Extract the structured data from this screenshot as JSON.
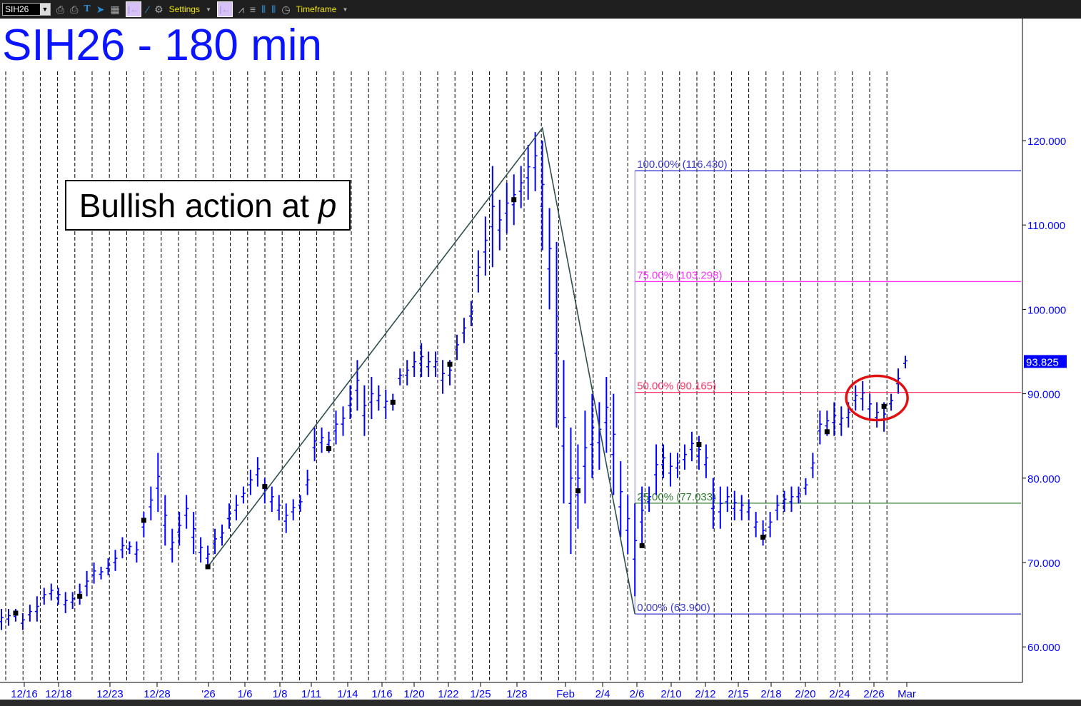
{
  "toolbar": {
    "symbol": "SIH26",
    "settings_label": "Settings",
    "timeframe_label": "Timeframe"
  },
  "title": "SIH26 - 180 min",
  "annotation": "Bullish action at ",
  "annotation_italic": "p",
  "colors": {
    "bars": "#0000ff",
    "trendline": "#2f4f4f",
    "fib100": "#3a3ad0",
    "fib75": "#ff33ff",
    "fib50": "#ff3366",
    "fib25": "#2e7d2e",
    "fib0": "#3a3ad0",
    "circle": "#e01010",
    "last_price_bg": "#0000ff"
  },
  "chart_data": {
    "type": "ohlc",
    "title": "SIH26 - 180 min",
    "ylim": [
      55,
      130
    ],
    "y_ticks": [
      "120.000",
      "110.000",
      "100.000",
      "90.000",
      "80.000",
      "70.000",
      "60.000"
    ],
    "y_tick_values": [
      120,
      110,
      100,
      90,
      80,
      70,
      60
    ],
    "x_ticks": [
      "12/16",
      "12/18",
      "12/23",
      "12/28",
      "'26",
      "1/6",
      "1/8",
      "1/11",
      "1/14",
      "1/16",
      "1/20",
      "1/22",
      "1/25",
      "1/28",
      "Feb",
      "2/4",
      "2/6",
      "2/10",
      "2/12",
      "2/15",
      "2/18",
      "2/20",
      "2/24",
      "2/26",
      "Mar"
    ],
    "last_price": "93.825",
    "bars_low_high": [
      [
        62,
        64.5
      ],
      [
        62.5,
        64.5
      ],
      [
        63,
        64.5
      ],
      [
        62,
        64
      ],
      [
        63,
        65
      ],
      [
        63,
        66
      ],
      [
        65,
        67
      ],
      [
        65.5,
        67.5
      ],
      [
        65,
        67
      ],
      [
        64,
        66.5
      ],
      [
        64.5,
        66.5
      ],
      [
        65,
        67.5
      ],
      [
        66,
        69
      ],
      [
        67.5,
        70
      ],
      [
        68,
        69.5
      ],
      [
        68.5,
        70.5
      ],
      [
        69,
        71.5
      ],
      [
        70.5,
        73
      ],
      [
        71,
        72.5
      ],
      [
        70,
        72.5
      ],
      [
        73,
        76
      ],
      [
        75,
        79
      ],
      [
        76,
        83
      ],
      [
        72,
        78
      ],
      [
        70,
        74
      ],
      [
        72,
        76
      ],
      [
        74,
        78
      ],
      [
        71,
        76
      ],
      [
        70,
        73
      ],
      [
        69.5,
        72
      ],
      [
        71,
        74
      ],
      [
        72,
        74.5
      ],
      [
        74,
        77
      ],
      [
        75,
        78
      ],
      [
        77,
        79
      ],
      [
        78,
        81
      ],
      [
        79,
        82.5
      ],
      [
        77,
        80
      ],
      [
        76,
        79
      ],
      [
        75,
        78
      ],
      [
        73.5,
        77
      ],
      [
        75,
        77.5
      ],
      [
        76,
        78
      ],
      [
        78,
        81
      ],
      [
        82,
        86
      ],
      [
        83,
        86
      ],
      [
        83,
        85.5
      ],
      [
        84,
        88
      ],
      [
        85,
        88.5
      ],
      [
        87,
        91
      ],
      [
        88,
        94
      ],
      [
        85,
        91
      ],
      [
        87,
        92
      ],
      [
        88,
        91
      ],
      [
        87,
        90.5
      ],
      [
        88,
        90
      ],
      [
        91,
        93
      ],
      [
        91,
        94
      ],
      [
        92,
        95
      ],
      [
        92,
        96
      ],
      [
        92,
        95
      ],
      [
        92,
        95
      ],
      [
        90,
        94
      ],
      [
        91,
        94
      ],
      [
        94,
        97
      ],
      [
        96,
        99
      ],
      [
        98,
        101
      ],
      [
        102,
        107
      ],
      [
        104,
        111
      ],
      [
        105,
        117
      ],
      [
        107,
        113
      ],
      [
        109,
        115
      ],
      [
        110,
        116
      ],
      [
        112,
        117
      ],
      [
        113,
        119.5
      ],
      [
        114,
        121
      ],
      [
        107,
        120
      ],
      [
        100,
        112
      ],
      [
        86,
        108
      ],
      [
        77,
        94
      ],
      [
        71,
        86
      ],
      [
        74,
        84
      ],
      [
        77,
        88
      ],
      [
        80,
        90
      ],
      [
        81,
        89
      ],
      [
        83,
        92
      ],
      [
        78,
        90
      ],
      [
        73,
        82
      ],
      [
        71,
        78
      ],
      [
        66,
        77
      ],
      [
        72,
        79
      ],
      [
        76,
        79
      ],
      [
        78,
        84
      ],
      [
        80,
        84
      ],
      [
        79,
        83
      ],
      [
        80,
        83
      ],
      [
        81,
        84
      ],
      [
        82,
        85.5
      ],
      [
        81,
        85
      ],
      [
        80,
        84
      ],
      [
        74,
        80
      ],
      [
        74,
        79
      ],
      [
        76,
        79
      ],
      [
        75,
        78.5
      ],
      [
        75,
        78
      ],
      [
        75,
        77.5
      ],
      [
        73,
        76
      ],
      [
        72,
        75
      ],
      [
        73,
        76
      ],
      [
        75,
        78
      ],
      [
        76,
        78.5
      ],
      [
        76,
        79
      ],
      [
        77,
        79
      ],
      [
        78,
        80
      ],
      [
        80,
        83
      ],
      [
        84,
        88
      ],
      [
        85,
        88
      ],
      [
        85,
        89
      ],
      [
        85,
        88.5
      ],
      [
        86,
        89
      ],
      [
        88,
        91
      ],
      [
        88,
        91.5
      ],
      [
        87,
        90
      ],
      [
        86,
        89
      ],
      [
        85.5,
        89
      ],
      [
        88,
        90
      ],
      [
        90,
        93
      ],
      [
        93,
        94.5
      ]
    ],
    "markers": [
      [
        2,
        64
      ],
      [
        11,
        66
      ],
      [
        20,
        75
      ],
      [
        29,
        69.5
      ],
      [
        37,
        79
      ],
      [
        46,
        83.5
      ],
      [
        55,
        89
      ],
      [
        63,
        93.5
      ],
      [
        72,
        113
      ],
      [
        81,
        78.5
      ],
      [
        90,
        72
      ],
      [
        98,
        84
      ],
      [
        107,
        73
      ],
      [
        116,
        85.5
      ],
      [
        124,
        88.5
      ]
    ],
    "trendline": [
      [
        29,
        69.5
      ],
      [
        76,
        121.5
      ],
      [
        89,
        63.9
      ]
    ],
    "fib_start_bar": 89,
    "fib_levels": [
      {
        "label": "100.00% (116.430)",
        "value": 116.43,
        "key": "fib100"
      },
      {
        "label": "75.00% (103.298)",
        "value": 103.298,
        "key": "fib75"
      },
      {
        "label": "50.00% (90.165)",
        "value": 90.165,
        "key": "fib50"
      },
      {
        "label": "25.00% (77.033)",
        "value": 77.033,
        "key": "fib25"
      },
      {
        "label": "0.00% (63.900)",
        "value": 63.9,
        "key": "fib0"
      }
    ],
    "highlight_circle": {
      "bar": 123,
      "price": 89.5
    }
  }
}
